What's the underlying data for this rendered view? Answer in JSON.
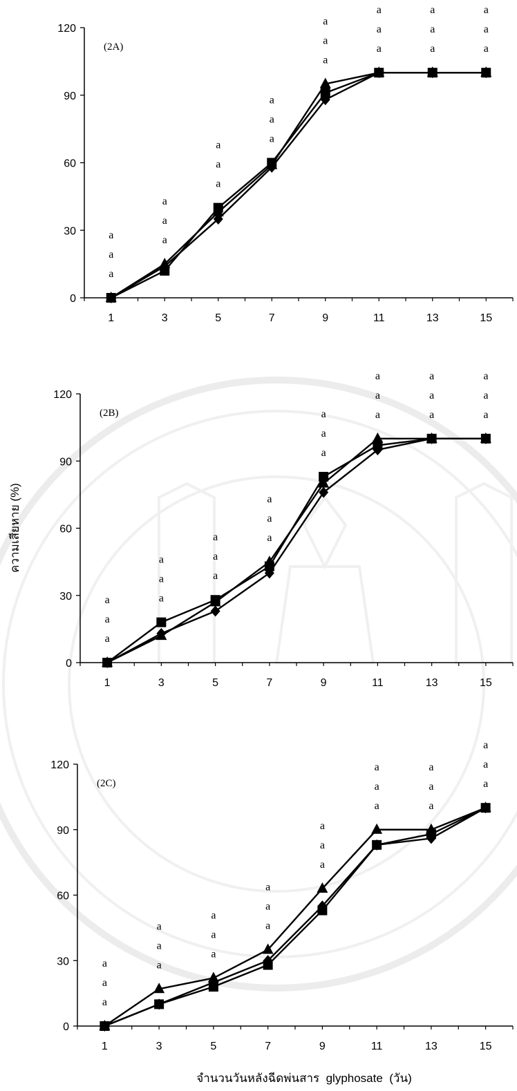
{
  "figure": {
    "ylabel": "ความเสียหาย (%)",
    "xlabel": "จำนวนวันหลังฉีดพ่นสาร  glyphosate  (วัน)",
    "marker_color": "#000000"
  },
  "chart_data": [
    {
      "type": "line",
      "panel_label": "(2A)",
      "x": [
        1,
        3,
        5,
        7,
        9,
        11,
        13,
        15
      ],
      "xlim": [
        0,
        16
      ],
      "ylim": [
        0,
        120
      ],
      "yticks": [
        0,
        30,
        60,
        90,
        120
      ],
      "series": [
        {
          "marker": "diamond",
          "values": [
            0,
            14,
            35,
            58,
            88,
            100,
            100,
            100
          ]
        },
        {
          "marker": "triangle",
          "values": [
            0,
            15,
            38,
            59,
            95,
            100,
            100,
            100
          ]
        },
        {
          "marker": "square",
          "values": [
            0,
            12,
            40,
            60,
            91,
            100,
            100,
            100
          ]
        }
      ],
      "letters": [
        "a",
        "a",
        "a",
        "a",
        "a",
        "a",
        "a",
        "a"
      ]
    },
    {
      "type": "line",
      "panel_label": "(2B)",
      "x": [
        1,
        3,
        5,
        7,
        9,
        11,
        13,
        15
      ],
      "xlim": [
        0,
        16
      ],
      "ylim": [
        0,
        120
      ],
      "yticks": [
        0,
        30,
        60,
        90,
        120
      ],
      "series": [
        {
          "marker": "diamond",
          "values": [
            0,
            13,
            23,
            40,
            76,
            95,
            100,
            100
          ]
        },
        {
          "marker": "triangle",
          "values": [
            0,
            12,
            27,
            45,
            80,
            100,
            100,
            100
          ]
        },
        {
          "marker": "square",
          "values": [
            0,
            18,
            28,
            43,
            83,
            97,
            100,
            100
          ]
        }
      ],
      "letters": [
        "a",
        "a",
        "a",
        "a",
        "a",
        "a",
        "a",
        "a"
      ]
    },
    {
      "type": "line",
      "panel_label": "(2C)",
      "x": [
        1,
        3,
        5,
        7,
        9,
        11,
        13,
        15
      ],
      "xlim": [
        0,
        16
      ],
      "ylim": [
        0,
        120
      ],
      "yticks": [
        0,
        30,
        60,
        90,
        120
      ],
      "series": [
        {
          "marker": "diamond",
          "values": [
            0,
            10,
            20,
            30,
            55,
            83,
            86,
            100
          ]
        },
        {
          "marker": "triangle",
          "values": [
            0,
            17,
            22,
            35,
            63,
            90,
            90,
            100
          ]
        },
        {
          "marker": "square",
          "values": [
            0,
            10,
            18,
            28,
            53,
            83,
            88,
            100
          ]
        }
      ],
      "letters": [
        "a",
        "a",
        "a",
        "a",
        "a",
        "a",
        "a",
        "a"
      ]
    }
  ]
}
